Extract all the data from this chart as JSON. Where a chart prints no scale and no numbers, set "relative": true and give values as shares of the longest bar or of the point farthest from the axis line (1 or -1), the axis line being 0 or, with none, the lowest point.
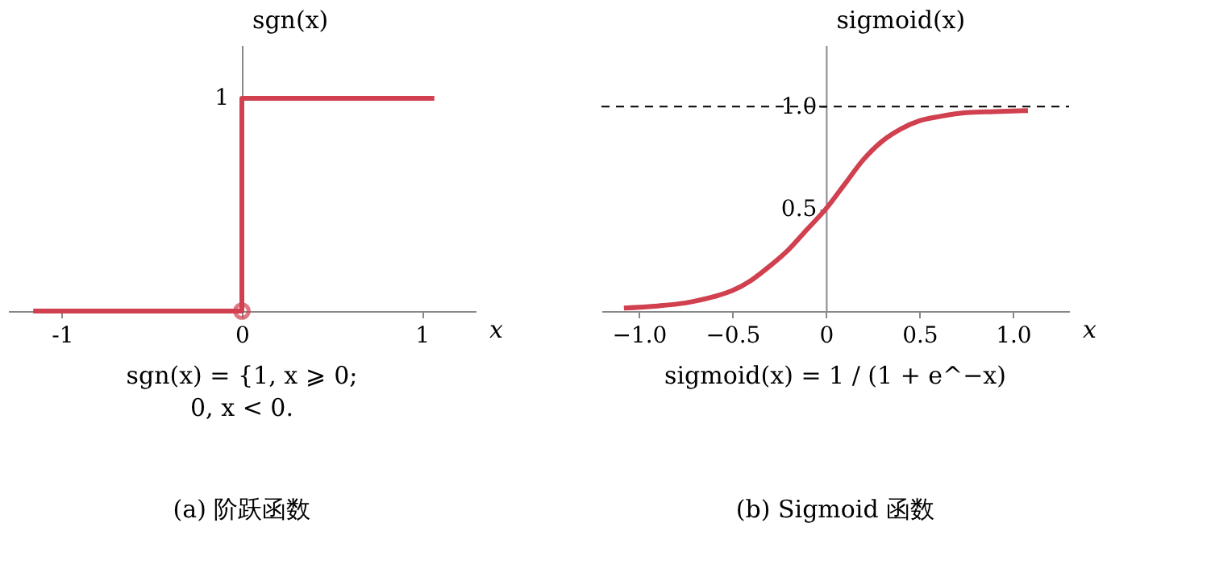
{
  "chart_data": [
    {
      "type": "line",
      "xlabel": "x",
      "ylabel": "sgn(x)",
      "xlim": [
        -1.3,
        1.3
      ],
      "relative": true,
      "xticks": [
        {
          "value": -1,
          "label": "-1"
        },
        {
          "value": 0,
          "label": "0"
        },
        {
          "value": 1,
          "label": "1"
        }
      ],
      "series": [
        {
          "type": "step",
          "color": "#d0404f",
          "x": [
            -1.16,
            0,
            1.07
          ],
          "values": [
            0,
            1,
            1
          ]
        },
        {
          "type": "scatter",
          "marker": "circle",
          "color": "#d0404f",
          "x": [
            0
          ],
          "values": [
            0
          ]
        }
      ],
      "annotations": [
        {
          "text": "1",
          "x": 0,
          "y": 1
        },
        "sgn(x) = {1,   x ⩾ 0;",
        "0,   x < 0.",
        "(a) 阶跃函数"
      ]
    },
    {
      "type": "line",
      "xlabel": "x",
      "ylabel": "sigmoid(x)",
      "xlim": [
        -1.2,
        1.3
      ],
      "ylim": [
        0,
        1.3
      ],
      "xticks": [
        {
          "value": -1,
          "label": "−1.0"
        },
        {
          "value": -0.5,
          "label": "−0.5"
        },
        {
          "value": 0,
          "label": "0"
        },
        0.5,
        {
          "value": 1,
          "label": "1.0"
        }
      ],
      "yticks": [
        0.5,
        {
          "value": 1,
          "label": "1.0"
        }
      ],
      "grid": false,
      "series": [
        {
          "color": "#d0404f",
          "x": [
            -1.08,
            -0.9,
            -0.75,
            -0.6,
            -0.5,
            -0.4,
            -0.3,
            -0.2,
            -0.1,
            0,
            0.1,
            0.2,
            0.3,
            0.4,
            0.5,
            0.6,
            0.75,
            0.9,
            1.08
          ],
          "values": [
            0.015,
            0.025,
            0.04,
            0.07,
            0.1,
            0.15,
            0.22,
            0.3,
            0.4,
            0.5,
            0.62,
            0.74,
            0.83,
            0.89,
            0.93,
            0.95,
            0.97,
            0.975,
            0.98
          ]
        }
      ],
      "ref_lines": [
        {
          "axis": "y",
          "value": 1,
          "color": "#000000",
          "line_style": "dashed"
        }
      ],
      "annotations": [
        "sigmoid(x) = 1 / (1 + e^−x)",
        "(b) Sigmoid 函数"
      ]
    }
  ]
}
